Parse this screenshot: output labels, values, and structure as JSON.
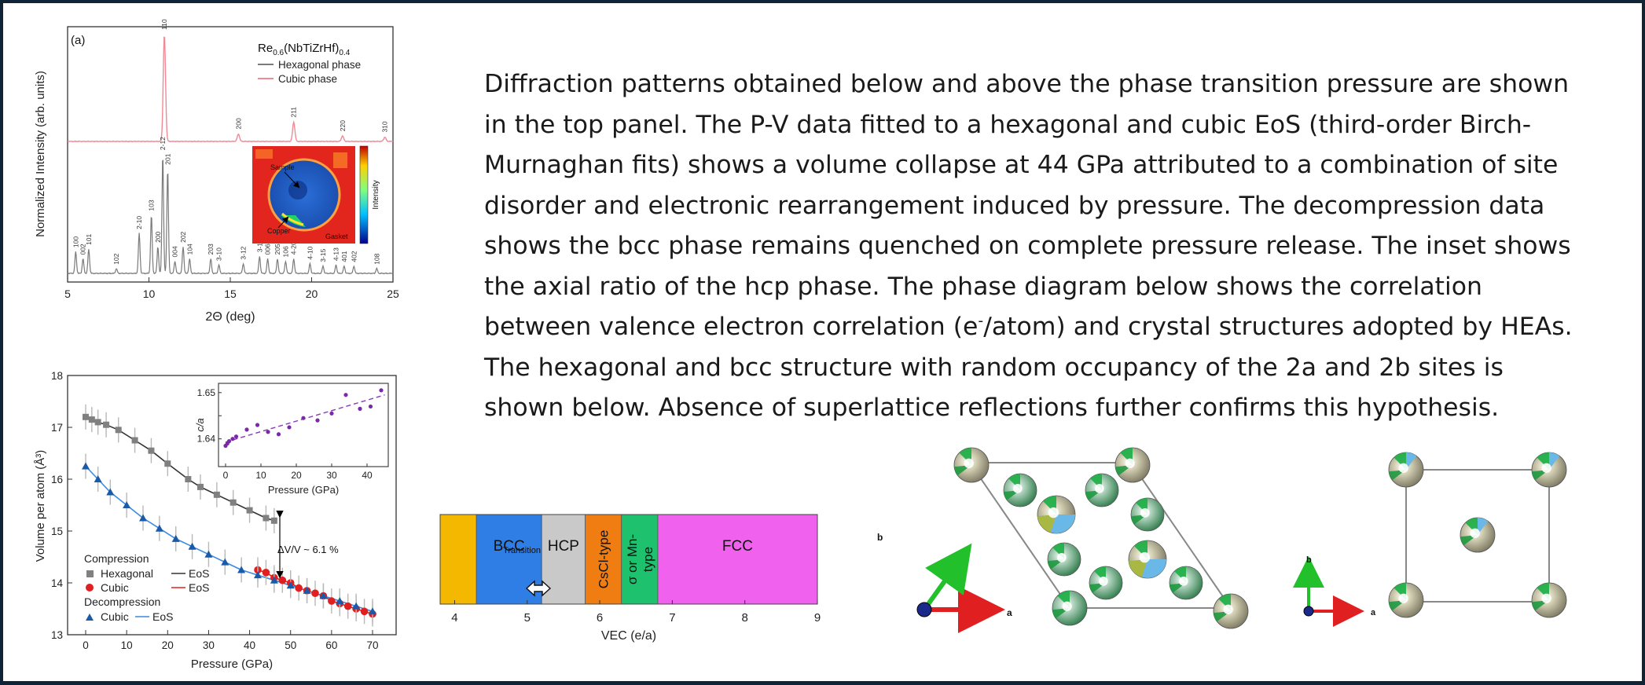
{
  "paragraph": {
    "part1": "Diffraction patterns obtained below and above the phase transition pressure are shown in the top panel. The P-V data fitted to a hexagonal and cubic EoS (third-order Birch-Murnaghan fits) shows a volume collapse at 44 GPa attributed to a combination of site disorder and electronic rearrangement induced by pressure. The decompression data shows the bcc phase remains quenched on complete pressure release. The inset shows the axial ratio of the hcp phase. The phase diagram below shows the correlation between valence electron correlation (e",
    "superscript": "-",
    "part2": "/atom) and crystal structures adopted by HEAs. The hexagonal and bcc structure with random occupancy of the 2a and 2b sites is shown below. Absence of superlattice reflections further confirms this hypothesis."
  },
  "chart_data": [
    {
      "type": "line",
      "panel_label": "(a)",
      "title": "Re0.6(NbTiZrHf)0.4",
      "xlabel": "2Θ (deg)",
      "ylabel": "Normalized Intensity (arb. units)",
      "xlim": [
        5,
        25
      ],
      "xticks": [
        5,
        10,
        15,
        20,
        25
      ],
      "legend": {
        "position": "top-right",
        "entries": [
          {
            "label": "Hexagonal phase",
            "color": "#7a7a7a"
          },
          {
            "label": "Cubic phase",
            "color": "#f08a96"
          }
        ]
      },
      "cubic_peaks": [
        {
          "x": 10.95,
          "h": 1.0,
          "label": "110"
        },
        {
          "x": 15.5,
          "h": 0.07,
          "label": "200"
        },
        {
          "x": 18.9,
          "h": 0.18,
          "label": "211"
        },
        {
          "x": 21.9,
          "h": 0.05,
          "label": "220"
        },
        {
          "x": 24.5,
          "h": 0.04,
          "label": "310"
        }
      ],
      "hex_peaks": [
        {
          "x": 5.5,
          "h": 0.18,
          "label": "100"
        },
        {
          "x": 5.95,
          "h": 0.12,
          "label": "002"
        },
        {
          "x": 6.3,
          "h": 0.2,
          "label": "101"
        },
        {
          "x": 8.0,
          "h": 0.04,
          "label": "102"
        },
        {
          "x": 9.4,
          "h": 0.33,
          "label": "2-10"
        },
        {
          "x": 10.15,
          "h": 0.48,
          "label": "103"
        },
        {
          "x": 10.55,
          "h": 0.22,
          "label": "200"
        },
        {
          "x": 10.85,
          "h": 0.98,
          "label": "2-12"
        },
        {
          "x": 11.15,
          "h": 0.86,
          "label": "201"
        },
        {
          "x": 11.6,
          "h": 0.1,
          "label": "004"
        },
        {
          "x": 12.1,
          "h": 0.22,
          "label": "202"
        },
        {
          "x": 12.5,
          "h": 0.12,
          "label": "104"
        },
        {
          "x": 13.8,
          "h": 0.12,
          "label": "203"
        },
        {
          "x": 14.3,
          "h": 0.07,
          "label": "3-10"
        },
        {
          "x": 15.8,
          "h": 0.08,
          "label": "3-12"
        },
        {
          "x": 16.8,
          "h": 0.14,
          "label": "3-13"
        },
        {
          "x": 17.3,
          "h": 0.12,
          "label": "006"
        },
        {
          "x": 17.9,
          "h": 0.12,
          "label": "205"
        },
        {
          "x": 18.4,
          "h": 0.1,
          "label": "106"
        },
        {
          "x": 18.9,
          "h": 0.12,
          "label": "4-20"
        },
        {
          "x": 19.9,
          "h": 0.08,
          "label": "4-10"
        },
        {
          "x": 20.7,
          "h": 0.06,
          "label": "3-15"
        },
        {
          "x": 21.5,
          "h": 0.07,
          "label": "4-13"
        },
        {
          "x": 22.0,
          "h": 0.06,
          "label": "401"
        },
        {
          "x": 22.6,
          "h": 0.06,
          "label": "402"
        },
        {
          "x": 24.0,
          "h": 0.04,
          "label": "108"
        }
      ],
      "inset": {
        "labels": {
          "sample": "Sample",
          "copper": "Copper",
          "gasket": "Gasket"
        },
        "colorbar_label": "Intensity"
      }
    },
    {
      "type": "scatter",
      "xlabel": "Pressure (GPa)",
      "ylabel": "Volume per atom (Å³)",
      "xlim": [
        0,
        75
      ],
      "ylim": [
        13,
        18
      ],
      "xticks": [
        0,
        10,
        20,
        30,
        40,
        50,
        60,
        70
      ],
      "yticks": [
        13,
        14,
        15,
        16,
        17,
        18
      ],
      "annotation": "ΔV/V ~ 6.1 %",
      "legend": {
        "position": "bottom-left",
        "groups": [
          {
            "heading": "Compression",
            "entries": [
              {
                "marker": "square",
                "label": "Hexagonal",
                "line": "EoS"
              },
              {
                "marker": "circle",
                "label": "Cubic",
                "line": "EoS"
              }
            ]
          },
          {
            "heading": "Decompression",
            "entries": [
              {
                "marker": "triangle",
                "label": "Cubic",
                "line": "EoS"
              }
            ]
          }
        ]
      },
      "series": [
        {
          "name": "Hexagonal",
          "marker": "square",
          "color": "#808080",
          "x": [
            0,
            1.5,
            3,
            5,
            8,
            12,
            16,
            20,
            25,
            28,
            32,
            36,
            40,
            44,
            46
          ],
          "y": [
            17.2,
            17.15,
            17.1,
            17.05,
            16.95,
            16.75,
            16.55,
            16.3,
            16.0,
            15.85,
            15.7,
            15.55,
            15.4,
            15.25,
            15.2
          ]
        },
        {
          "name": "Cubic",
          "marker": "circle",
          "color": "#e02020",
          "x": [
            42,
            44,
            46,
            48,
            50,
            52,
            54,
            56,
            58,
            60,
            62,
            64,
            66,
            68,
            70
          ],
          "y": [
            14.25,
            14.2,
            14.1,
            14.05,
            14.0,
            13.9,
            13.85,
            13.8,
            13.75,
            13.65,
            13.6,
            13.55,
            13.5,
            13.45,
            13.4
          ]
        },
        {
          "name": "Cubic",
          "marker": "triangle",
          "color": "#1a5aa8",
          "x": [
            0,
            3,
            6,
            10,
            14,
            18,
            22,
            26,
            30,
            34,
            38,
            42,
            46,
            50,
            54,
            58,
            62,
            66,
            70
          ],
          "y": [
            16.25,
            16.0,
            15.75,
            15.5,
            15.25,
            15.05,
            14.85,
            14.7,
            14.55,
            14.4,
            14.25,
            14.15,
            14.05,
            13.95,
            13.85,
            13.75,
            13.65,
            13.55,
            13.45
          ]
        }
      ],
      "inset": {
        "type": "scatter",
        "xlabel": "Pressure (GPa)",
        "ylabel": "c/a",
        "xlim": [
          -2,
          46
        ],
        "ylim": [
          1.634,
          1.652
        ],
        "xticks": [
          0,
          10,
          20,
          30,
          40
        ],
        "yticks": [
          1.64,
          1.645,
          1.65
        ],
        "ytick_labels": [
          "1.64",
          "",
          "1.65"
        ],
        "x": [
          0,
          0.5,
          1,
          2,
          3,
          6,
          9,
          12,
          15,
          18,
          22,
          26,
          30,
          34,
          38,
          41,
          44
        ],
        "y": [
          1.6385,
          1.639,
          1.6395,
          1.64,
          1.6405,
          1.642,
          1.643,
          1.6415,
          1.641,
          1.6425,
          1.6445,
          1.644,
          1.6455,
          1.6495,
          1.6465,
          1.647,
          1.6505
        ]
      }
    },
    {
      "type": "bar",
      "xlabel": "VEC (e/a)",
      "xlim": [
        3.8,
        9
      ],
      "xticks": [
        4,
        5,
        6,
        7,
        8,
        9
      ],
      "transition_label": "Transition",
      "regions": [
        {
          "label": "",
          "from": 3.8,
          "to": 4.3,
          "color": "#f5b800"
        },
        {
          "label": "BCC",
          "from": 4.3,
          "to": 5.2,
          "color": "#2e7ee6"
        },
        {
          "label": "HCP",
          "from": 5.2,
          "to": 5.8,
          "color": "#c9c9c9"
        },
        {
          "label": "CsCl-type",
          "from": 5.8,
          "to": 6.3,
          "color": "#f07d12"
        },
        {
          "label": "σ or Mn-type",
          "from": 6.3,
          "to": 6.8,
          "color": "#1ec26e"
        },
        {
          "label": "FCC",
          "from": 6.8,
          "to": 9,
          "color": "#f062ee"
        }
      ]
    }
  ],
  "structures": {
    "hexagonal": {
      "axis_a": "a",
      "axis_b": "b"
    },
    "cubic": {
      "axis_a": "a",
      "axis_b": "b"
    }
  },
  "colors": {
    "frame": "#0f2436",
    "cubic_pattern": "#f08a96",
    "hex_pattern": "#7a7a7a"
  }
}
